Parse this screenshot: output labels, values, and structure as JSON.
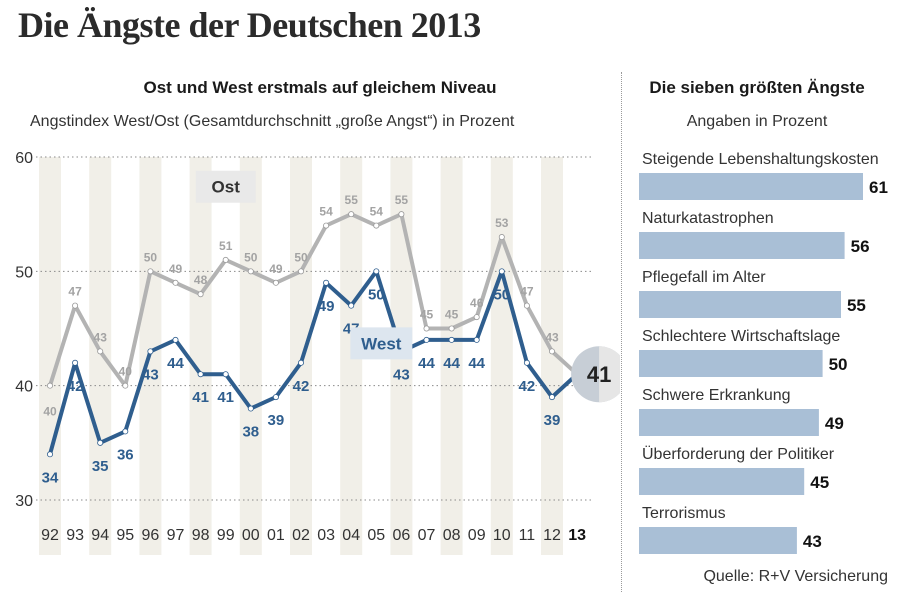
{
  "header": {
    "title": "Die Ängste der Deutschen 2013"
  },
  "left_panel": {
    "subtitle": "Ost und West erstmals auf gleichem Niveau",
    "description": "Angstindex West/Ost (Gesamtdurchschnitt „große Angst“) in Prozent"
  },
  "right_panel": {
    "title": "Die sieben größten Ängste",
    "description": "Angaben in Prozent"
  },
  "footer": {
    "source": "Quelle: R+V Versicherung"
  },
  "colors": {
    "west": "#2f5e8e",
    "ost": "#b3b3b3",
    "stripe": "#f1efe8",
    "bar": "#a9bfd6",
    "label_box_ost": "#e9e9e9",
    "label_box_west": "#dde6ef"
  },
  "chart_data": [
    {
      "type": "line",
      "title": "Ost und West erstmals auf gleichem Niveau",
      "subtitle": "Angstindex West/Ost (Gesamtdurchschnitt „große Angst“) in Prozent",
      "categories": [
        "92",
        "93",
        "94",
        "95",
        "96",
        "97",
        "98",
        "99",
        "00",
        "01",
        "02",
        "03",
        "04",
        "05",
        "06",
        "07",
        "08",
        "09",
        "10",
        "11",
        "12",
        "13"
      ],
      "highlight_category": "13",
      "yticks": [
        30,
        40,
        50,
        60
      ],
      "ylim": [
        30,
        60
      ],
      "series": [
        {
          "name": "Ost",
          "values": [
            40,
            47,
            43,
            40,
            50,
            49,
            48,
            51,
            50,
            49,
            50,
            54,
            55,
            54,
            55,
            45,
            45,
            46,
            53,
            47,
            43,
            41
          ]
        },
        {
          "name": "West",
          "values": [
            34,
            42,
            35,
            36,
            43,
            44,
            41,
            41,
            38,
            39,
            42,
            49,
            47,
            50,
            43,
            44,
            44,
            44,
            50,
            42,
            39,
            41
          ]
        }
      ],
      "combined_last_value": "41",
      "grid": true
    },
    {
      "type": "bar",
      "title": "Die sieben größten Ängste",
      "subtitle": "Angaben in Prozent",
      "categories": [
        "Steigende Lebenshaltungskosten",
        "Naturkatastrophen",
        "Pflegefall im Alter",
        "Schlechtere Wirtschaftslage",
        "Schwere Erkrankung",
        "Überforderung der Politiker",
        "Terrorismus"
      ],
      "values": [
        61,
        56,
        55,
        50,
        49,
        45,
        43
      ],
      "orientation": "horizontal"
    }
  ]
}
